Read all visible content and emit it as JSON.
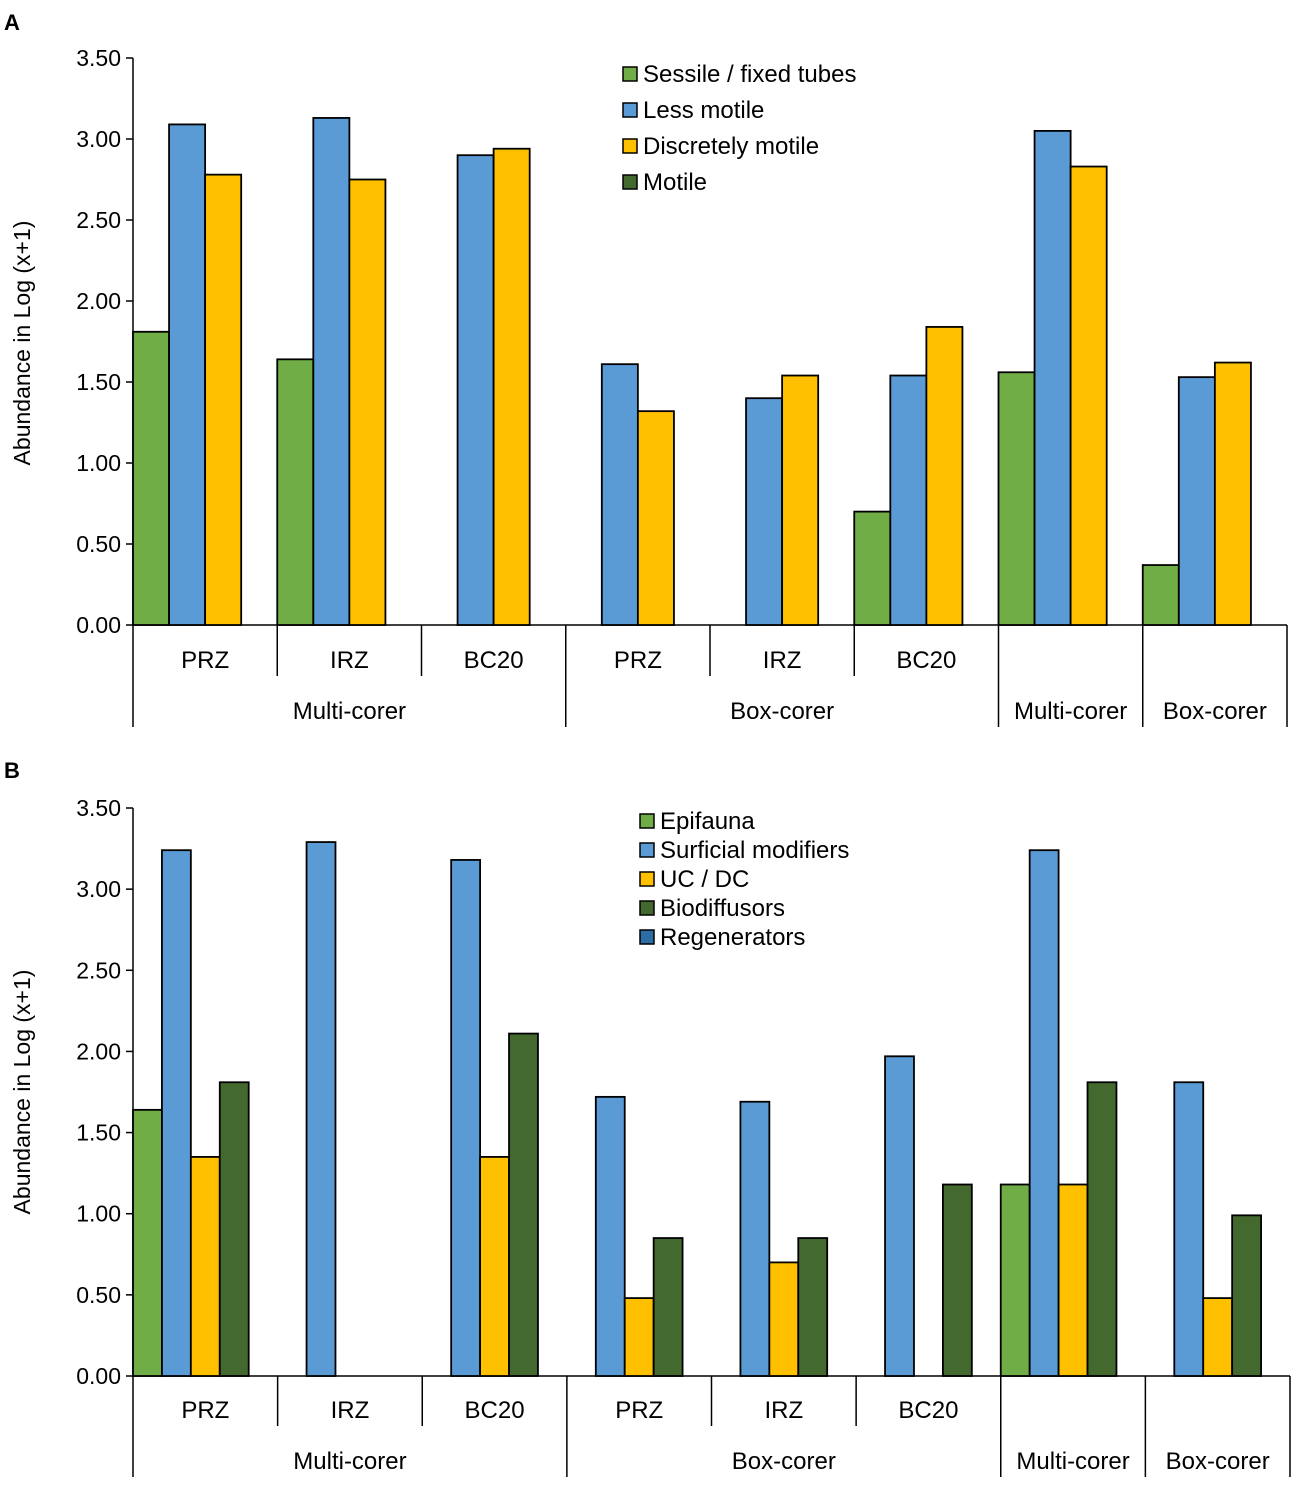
{
  "colors": {
    "green": "#70ad47",
    "blue": "#5b9bd5",
    "gold": "#ffc000",
    "darkgreen": "#44692f",
    "navy": "#2e6da4"
  },
  "chart_data": [
    {
      "panel": "A",
      "type": "bar",
      "ylabel": "Abundance in Log (x+1)",
      "ylim": [
        0,
        3.5
      ],
      "yticks": [
        "0.00",
        "0.50",
        "1.00",
        "1.50",
        "2.00",
        "2.50",
        "3.00",
        "3.50"
      ],
      "legend_position": "top-right",
      "groups": [
        {
          "name": "Multi-corer",
          "categories": [
            "PRZ",
            "IRZ",
            "BC20"
          ]
        },
        {
          "name": "Box-corer",
          "categories": [
            "PRZ",
            "IRZ",
            "BC20"
          ]
        },
        {
          "name": "Multi-corer",
          "categories": [
            ""
          ]
        },
        {
          "name": "Box-corer",
          "categories": [
            ""
          ]
        }
      ],
      "series": [
        {
          "name": "Sessile / fixed tubes",
          "color": "#70ad47",
          "values": [
            1.81,
            1.64,
            0,
            0,
            0,
            0.7,
            1.56,
            0.37
          ]
        },
        {
          "name": "Less motile",
          "color": "#5b9bd5",
          "values": [
            3.09,
            3.13,
            2.9,
            1.61,
            1.4,
            1.54,
            3.05,
            1.53
          ]
        },
        {
          "name": "Discretely motile",
          "color": "#ffc000",
          "values": [
            2.78,
            2.75,
            2.94,
            1.32,
            1.54,
            1.84,
            2.83,
            1.62
          ]
        },
        {
          "name": "Motile",
          "color": "#44692f",
          "values": [
            0,
            0,
            0,
            0,
            0,
            0,
            0,
            0
          ]
        }
      ]
    },
    {
      "panel": "B",
      "type": "bar",
      "ylabel": "Abundance in Log (x+1)",
      "ylim": [
        0,
        3.5
      ],
      "yticks": [
        "0.00",
        "0.50",
        "1.00",
        "1.50",
        "2.00",
        "2.50",
        "3.00",
        "3.50"
      ],
      "legend_position": "top-right",
      "groups": [
        {
          "name": "Multi-corer",
          "categories": [
            "PRZ",
            "IRZ",
            "BC20"
          ]
        },
        {
          "name": "Box-corer",
          "categories": [
            "PRZ",
            "IRZ",
            "BC20"
          ]
        },
        {
          "name": "Multi-corer",
          "categories": [
            ""
          ]
        },
        {
          "name": "Box-corer",
          "categories": [
            ""
          ]
        }
      ],
      "series": [
        {
          "name": "Epifauna",
          "color": "#70ad47",
          "values": [
            1.64,
            0,
            0,
            0,
            0,
            0,
            1.18,
            0
          ]
        },
        {
          "name": "Surficial modifiers",
          "color": "#5b9bd5",
          "values": [
            3.24,
            3.29,
            3.18,
            1.72,
            1.69,
            1.97,
            3.24,
            1.81
          ]
        },
        {
          "name": "UC / DC",
          "color": "#ffc000",
          "values": [
            1.35,
            0,
            1.35,
            0.48,
            0.7,
            0,
            1.18,
            0.48
          ]
        },
        {
          "name": "Biodiffusors",
          "color": "#44692f",
          "values": [
            1.81,
            0,
            2.11,
            0.85,
            0.85,
            1.18,
            1.81,
            0.99
          ]
        },
        {
          "name": "Regenerators",
          "color": "#2e6da4",
          "values": [
            0,
            0,
            0,
            0,
            0,
            0,
            0,
            0
          ]
        }
      ]
    }
  ]
}
